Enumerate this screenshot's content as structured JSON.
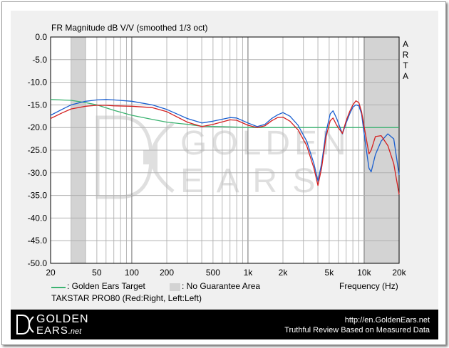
{
  "chart_data": {
    "type": "line",
    "title": "FR Magnitude dB V/V (smoothed 1/3 oct)",
    "xlabel": "Frequency (Hz)",
    "ylabel": "",
    "side_label": [
      "A",
      "R",
      "T",
      "A"
    ],
    "xscale": "log",
    "xlim": [
      20,
      20000
    ],
    "ylim": [
      -50,
      0
    ],
    "grid": true,
    "x_ticks": [
      {
        "v": 20,
        "t": "20"
      },
      {
        "v": 50,
        "t": "50"
      },
      {
        "v": 100,
        "t": "100"
      },
      {
        "v": 200,
        "t": "200"
      },
      {
        "v": 500,
        "t": "500"
      },
      {
        "v": 1000,
        "t": "1k"
      },
      {
        "v": 2000,
        "t": "2k"
      },
      {
        "v": 5000,
        "t": "5k"
      },
      {
        "v": 10000,
        "t": "10k"
      },
      {
        "v": 20000,
        "t": "20k"
      }
    ],
    "y_ticks": [
      {
        "v": 0,
        "t": "0.0"
      },
      {
        "v": -5,
        "t": "-5.0"
      },
      {
        "v": -10,
        "t": "-10.0"
      },
      {
        "v": -15,
        "t": "-15.0"
      },
      {
        "v": -20,
        "t": "-20.0"
      },
      {
        "v": -25,
        "t": "-25.0"
      },
      {
        "v": -30,
        "t": "-30.0"
      },
      {
        "v": -35,
        "t": "-35.0"
      },
      {
        "v": -40,
        "t": "-40.0"
      },
      {
        "v": -45,
        "t": "-45.0"
      },
      {
        "v": -50,
        "t": "-50.0"
      }
    ],
    "no_guarantee_areas": [
      [
        30,
        40
      ],
      [
        10000,
        20000
      ]
    ],
    "series": [
      {
        "name": "Golden Ears Target",
        "color": "#3cb371",
        "points": [
          [
            20,
            -13.8
          ],
          [
            30,
            -14
          ],
          [
            40,
            -14.5
          ],
          [
            50,
            -15
          ],
          [
            70,
            -16.2
          ],
          [
            100,
            -17.3
          ],
          [
            150,
            -18.2
          ],
          [
            200,
            -18.8
          ],
          [
            300,
            -19.3
          ],
          [
            400,
            -19.7
          ],
          [
            600,
            -19.8
          ],
          [
            1000,
            -20
          ],
          [
            2000,
            -20
          ],
          [
            5000,
            -20
          ],
          [
            10000,
            -20
          ],
          [
            20000,
            -20
          ]
        ]
      },
      {
        "name": "Left",
        "color": "#1a5fd0",
        "points": [
          [
            20,
            -17.3
          ],
          [
            25,
            -16
          ],
          [
            30,
            -15
          ],
          [
            40,
            -14.2
          ],
          [
            50,
            -13.9
          ],
          [
            60,
            -13.8
          ],
          [
            70,
            -13.9
          ],
          [
            100,
            -14.2
          ],
          [
            150,
            -15
          ],
          [
            200,
            -16
          ],
          [
            300,
            -18
          ],
          [
            400,
            -19
          ],
          [
            500,
            -18.6
          ],
          [
            700,
            -17.8
          ],
          [
            800,
            -17.9
          ],
          [
            1000,
            -19
          ],
          [
            1200,
            -19.8
          ],
          [
            1400,
            -19.3
          ],
          [
            1600,
            -18
          ],
          [
            1800,
            -17.2
          ],
          [
            2000,
            -16.7
          ],
          [
            2300,
            -17.5
          ],
          [
            2700,
            -19.5
          ],
          [
            3200,
            -23
          ],
          [
            3700,
            -28
          ],
          [
            4000,
            -31.8
          ],
          [
            4300,
            -28
          ],
          [
            4700,
            -21
          ],
          [
            5100,
            -17
          ],
          [
            5400,
            -16.3
          ],
          [
            5800,
            -18
          ],
          [
            6500,
            -21.4
          ],
          [
            7000,
            -19
          ],
          [
            7500,
            -17
          ],
          [
            8000,
            -15.5
          ],
          [
            8500,
            -15
          ],
          [
            9000,
            -15.2
          ],
          [
            9500,
            -17
          ],
          [
            10200,
            -23
          ],
          [
            11000,
            -29
          ],
          [
            11500,
            -29.8
          ],
          [
            12500,
            -26
          ],
          [
            14000,
            -23
          ],
          [
            16000,
            -21.4
          ],
          [
            18000,
            -22.5
          ],
          [
            20000,
            -30.5
          ]
        ]
      },
      {
        "name": "Right",
        "color": "#d42020",
        "points": [
          [
            20,
            -18
          ],
          [
            25,
            -16.8
          ],
          [
            30,
            -15.9
          ],
          [
            40,
            -15.3
          ],
          [
            50,
            -15.1
          ],
          [
            60,
            -15.1
          ],
          [
            70,
            -15.2
          ],
          [
            100,
            -15.3
          ],
          [
            150,
            -15.6
          ],
          [
            200,
            -16.5
          ],
          [
            300,
            -18.8
          ],
          [
            400,
            -19.8
          ],
          [
            500,
            -19.3
          ],
          [
            700,
            -18.3
          ],
          [
            800,
            -18.4
          ],
          [
            1000,
            -19.5
          ],
          [
            1200,
            -20
          ],
          [
            1400,
            -19.6
          ],
          [
            1600,
            -18.5
          ],
          [
            1800,
            -17.8
          ],
          [
            2000,
            -17.7
          ],
          [
            2300,
            -18.6
          ],
          [
            2700,
            -20.5
          ],
          [
            3200,
            -24
          ],
          [
            3700,
            -29
          ],
          [
            4000,
            -32.8
          ],
          [
            4300,
            -29
          ],
          [
            4700,
            -22
          ],
          [
            5100,
            -18.5
          ],
          [
            5400,
            -17.9
          ],
          [
            5800,
            -19.5
          ],
          [
            6500,
            -21.3
          ],
          [
            7000,
            -18.5
          ],
          [
            7500,
            -16.5
          ],
          [
            8000,
            -15
          ],
          [
            8500,
            -14.1
          ],
          [
            9000,
            -14.5
          ],
          [
            9500,
            -16.5
          ],
          [
            10200,
            -21
          ],
          [
            11000,
            -25.8
          ],
          [
            11500,
            -25
          ],
          [
            12500,
            -22
          ],
          [
            14000,
            -21.8
          ],
          [
            16000,
            -24
          ],
          [
            18000,
            -28
          ],
          [
            20000,
            -34.8
          ]
        ]
      }
    ],
    "legend": {
      "target_label": ": Golden Ears Target",
      "area_label": ": No Guarantee Area",
      "model_label": "TAKSTAR PRO80 (Red:Right, Left:Left)",
      "position": "bottom-left"
    },
    "watermark": {
      "line1": "GOLDEN",
      "line2": "E A R S"
    }
  },
  "footer": {
    "logo_line1": "GOLDEN",
    "logo_line2": "EARS",
    "logo_suffix": ".net",
    "url": "http://en.GoldenEars.net",
    "slogan": "Truthful Review Based on Measured Data"
  }
}
